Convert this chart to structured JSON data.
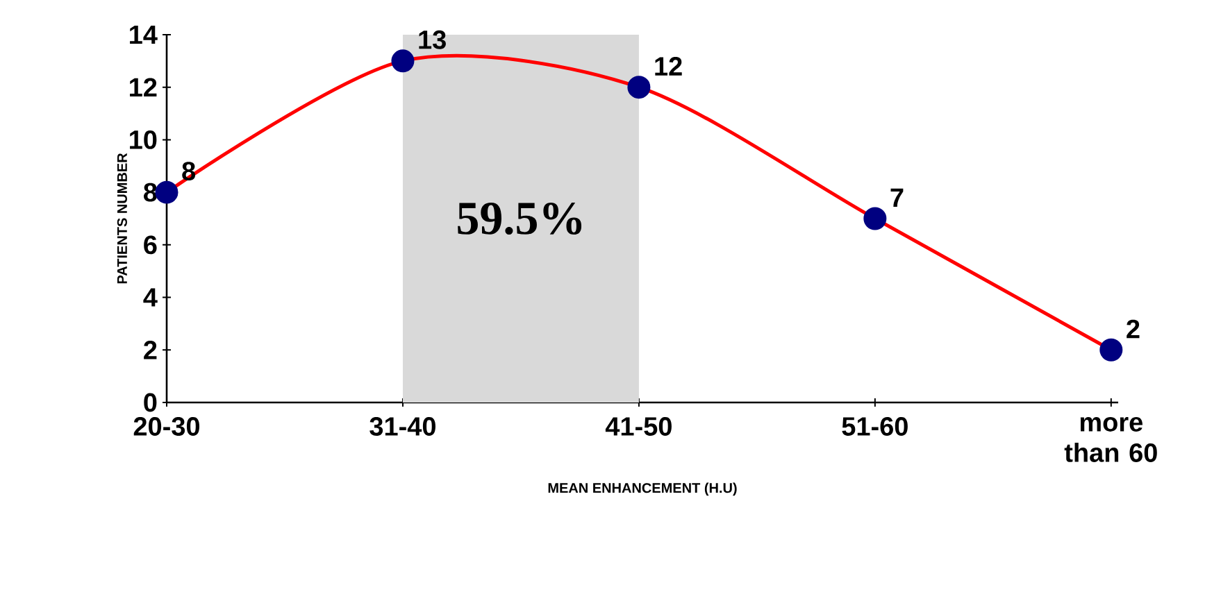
{
  "chart_data": {
    "type": "line",
    "xlabel": "MEAN ENHANCEMENT (H.U)",
    "ylabel": "PATIENTS NUMBER",
    "categories": [
      "20-30",
      "31-40",
      "41-50",
      "51-60",
      "more than 60"
    ],
    "series": [
      {
        "color": "#ff0000",
        "values": [
          8,
          13,
          12,
          7,
          2
        ]
      }
    ],
    "ylim": [
      0,
      14
    ],
    "yticks": [
      0,
      2,
      4,
      6,
      8,
      10,
      12,
      14
    ],
    "bands": [
      {
        "axis": "x",
        "from": "31-40",
        "to": "41-50",
        "label": "59.5%",
        "color": "#d9d9d9"
      }
    ],
    "data_labels": true,
    "marker": "circle",
    "line_style": "solid",
    "grid": false
  }
}
